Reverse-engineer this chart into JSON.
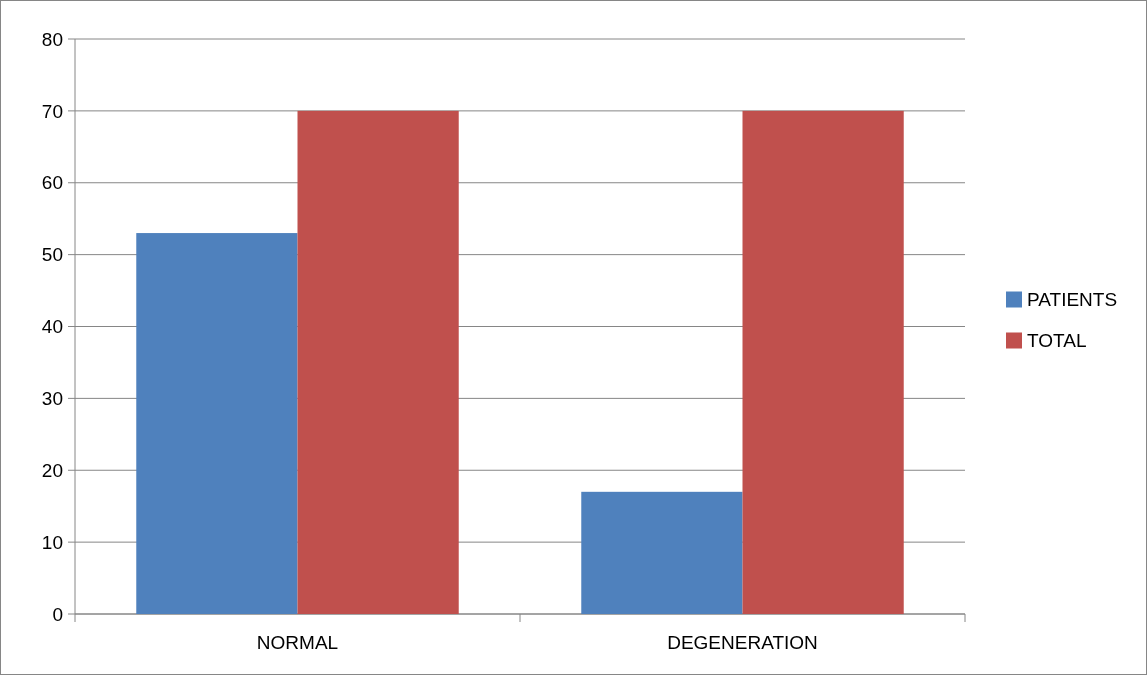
{
  "chart_data": {
    "type": "bar",
    "categories": [
      "NORMAL",
      "DEGENERATION"
    ],
    "series": [
      {
        "name": "PATIENTS",
        "color": "#4f81bd",
        "values": [
          53,
          17
        ]
      },
      {
        "name": "TOTAL",
        "color": "#c0504d",
        "values": [
          70,
          70
        ]
      }
    ],
    "ylim": [
      0,
      80
    ],
    "yticks": [
      0,
      10,
      20,
      30,
      40,
      50,
      60,
      70,
      80
    ],
    "grid": "y",
    "legend": "right"
  }
}
